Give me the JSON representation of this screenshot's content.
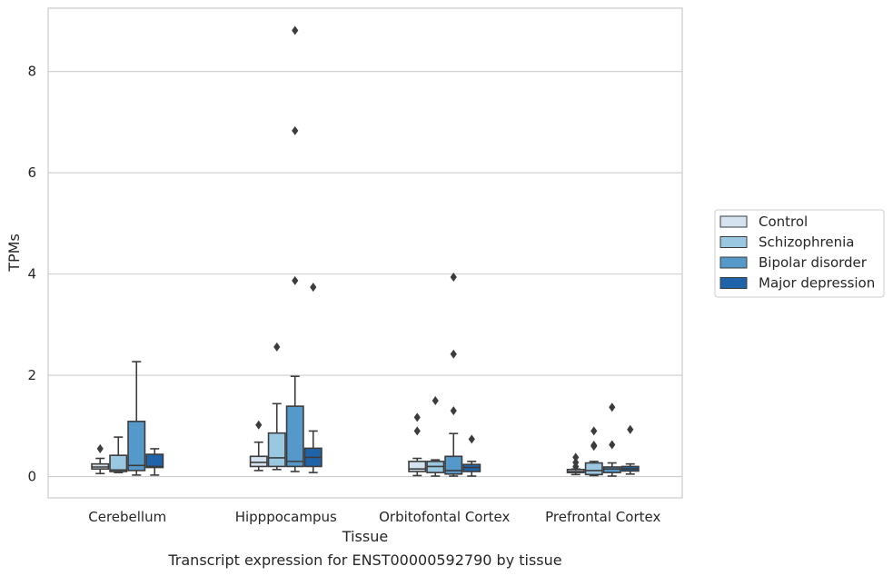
{
  "chart_data": {
    "type": "box",
    "title": "Transcript expression for ENST00000592790 by tissue",
    "xlabel": "Tissue",
    "ylabel": "TPMs",
    "ylim": [
      -0.42,
      9.25
    ],
    "yticks": [
      0,
      2,
      4,
      6,
      8
    ],
    "grid": "horizontal",
    "legend_position": "right",
    "categories": [
      "Cerebellum",
      "Hipppocampus",
      "Orbitofontal Cortex",
      "Prefrontal Cortex"
    ],
    "series": [
      {
        "name": "Control",
        "color": "#d5e3f1",
        "boxes": [
          {
            "whislo": 0.06,
            "q1": 0.15,
            "med": 0.19,
            "q3": 0.25,
            "whishi": 0.36,
            "fliers": [
              0.55
            ]
          },
          {
            "whislo": 0.12,
            "q1": 0.2,
            "med": 0.28,
            "q3": 0.4,
            "whishi": 0.68,
            "fliers": [
              1.02
            ]
          },
          {
            "whislo": 0.02,
            "q1": 0.1,
            "med": 0.15,
            "q3": 0.3,
            "whishi": 0.36,
            "fliers": [
              0.9,
              1.17
            ]
          },
          {
            "whislo": 0.04,
            "q1": 0.08,
            "med": 0.1,
            "q3": 0.14,
            "whishi": 0.15,
            "fliers": [
              0.2,
              0.28,
              0.38
            ]
          }
        ]
      },
      {
        "name": "Schizophrenia",
        "color": "#9ac8e0",
        "boxes": [
          {
            "whislo": 0.08,
            "q1": 0.1,
            "med": 0.13,
            "q3": 0.42,
            "whishi": 0.78,
            "fliers": []
          },
          {
            "whislo": 0.14,
            "q1": 0.2,
            "med": 0.37,
            "q3": 0.86,
            "whishi": 1.44,
            "fliers": [
              2.56
            ]
          },
          {
            "whislo": 0.01,
            "q1": 0.08,
            "med": 0.2,
            "q3": 0.3,
            "whishi": 0.33,
            "fliers": [
              1.5
            ]
          },
          {
            "whislo": 0.02,
            "q1": 0.04,
            "med": 0.12,
            "q3": 0.27,
            "whishi": 0.3,
            "fliers": [
              0.6,
              0.62,
              0.9
            ]
          }
        ]
      },
      {
        "name": "Bipolar disorder",
        "color": "#5499c9",
        "boxes": [
          {
            "whislo": 0.03,
            "q1": 0.12,
            "med": 0.22,
            "q3": 1.09,
            "whishi": 2.27,
            "fliers": []
          },
          {
            "whislo": 0.1,
            "q1": 0.2,
            "med": 0.3,
            "q3": 1.39,
            "whishi": 1.98,
            "fliers": [
              3.87,
              6.83,
              8.81
            ]
          },
          {
            "whislo": 0.01,
            "q1": 0.05,
            "med": 0.12,
            "q3": 0.4,
            "whishi": 0.85,
            "fliers": [
              1.3,
              2.42,
              3.94
            ]
          },
          {
            "whislo": 0.01,
            "q1": 0.08,
            "med": 0.15,
            "q3": 0.19,
            "whishi": 0.27,
            "fliers": [
              0.63,
              1.37
            ]
          }
        ]
      },
      {
        "name": "Major depression",
        "color": "#1f63a8",
        "boxes": [
          {
            "whislo": 0.03,
            "q1": 0.18,
            "med": 0.2,
            "q3": 0.44,
            "whishi": 0.55,
            "fliers": []
          },
          {
            "whislo": 0.08,
            "q1": 0.2,
            "med": 0.38,
            "q3": 0.56,
            "whishi": 0.9,
            "fliers": [
              3.74
            ]
          },
          {
            "whislo": 0.01,
            "q1": 0.1,
            "med": 0.18,
            "q3": 0.24,
            "whishi": 0.3,
            "fliers": [
              0.74
            ]
          },
          {
            "whislo": 0.05,
            "q1": 0.11,
            "med": 0.15,
            "q3": 0.2,
            "whishi": 0.25,
            "fliers": [
              0.93
            ]
          }
        ]
      }
    ]
  }
}
